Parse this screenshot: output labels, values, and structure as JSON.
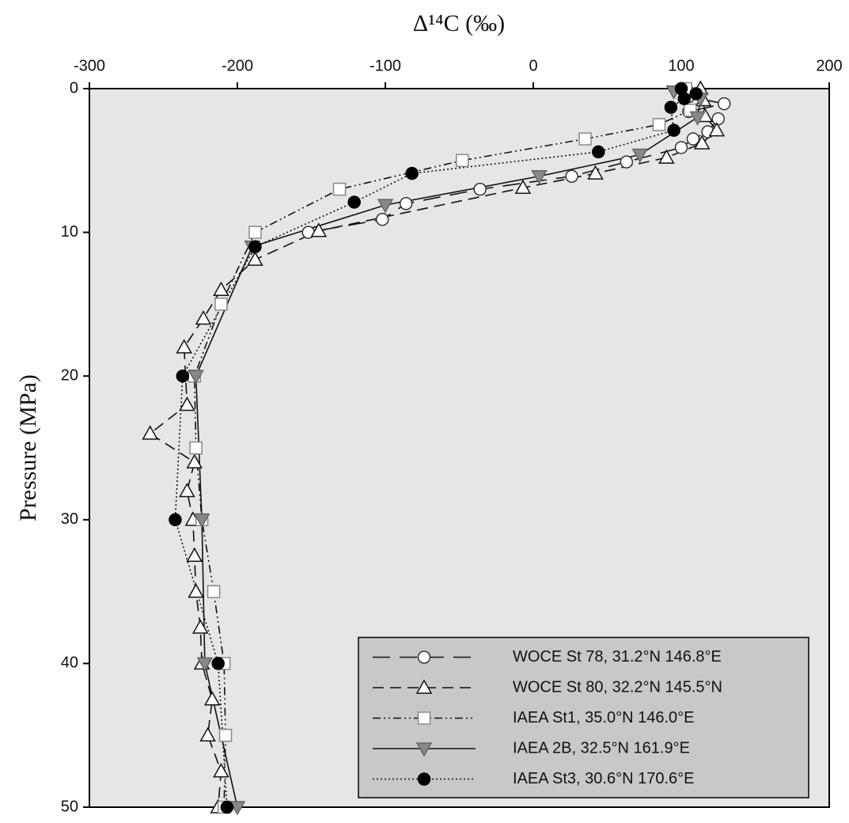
{
  "chart_data": {
    "type": "line",
    "xlabel": "Δ¹⁴C (‰)",
    "ylabel": "Pressure (MPa)",
    "xlim": [
      -300,
      200
    ],
    "xticks": [
      -300,
      -200,
      -100,
      0,
      100,
      200
    ],
    "ylim": [
      0,
      50
    ],
    "yticks": [
      0,
      10,
      20,
      30,
      40,
      50
    ],
    "invert_y": true,
    "background": "#e6e6e6",
    "legend_background": "#c8c8c8",
    "legend": "lower right",
    "series": [
      {
        "name": "WOCE St 78, 31.2°N 146.8°E",
        "color": "#111111",
        "dash": "22,12",
        "marker": "circle",
        "marker_fill": "#ffffff",
        "marker_stroke": "#333333",
        "x": [
          104,
          105,
          129,
          105,
          125,
          118,
          108,
          100,
          63,
          26,
          -36,
          -86,
          -102,
          -152
        ],
        "y": [
          0.1,
          0.55,
          1.05,
          1.6,
          2.1,
          3.0,
          3.5,
          4.1,
          5.1,
          6.1,
          7.0,
          8.0,
          9.1,
          10.0
        ]
      },
      {
        "name": "WOCE St 80, 32.2°N 145.5°N",
        "color": "#111111",
        "dash": "14,8",
        "marker": "triangle-up",
        "marker_fill": "#ffffff",
        "marker_stroke": "#111111",
        "x": [
          113,
          115,
          116,
          124,
          114,
          90,
          42,
          -7,
          -145,
          -188,
          -211,
          -223,
          -236,
          -234,
          -259,
          -229,
          -234,
          -230,
          -229,
          -228,
          -225,
          -224,
          -217,
          -220,
          -211,
          -213
        ],
        "y": [
          0,
          0.8,
          1.9,
          2.9,
          3.8,
          4.8,
          5.9,
          6.9,
          9.9,
          11.9,
          14,
          16,
          18,
          22,
          24,
          26,
          28,
          30,
          32.5,
          35,
          37.5,
          40,
          42.5,
          45,
          47.5,
          50
        ]
      },
      {
        "name": "IAEA St1, 35.0°N 146.0°E",
        "color": "#111111",
        "dash": "10,4,2,4,2,4",
        "marker": "square",
        "marker_fill": "#ffffff",
        "marker_stroke": "#888888",
        "x": [
          103,
          106,
          85,
          35,
          -48,
          -131,
          -188,
          -211,
          -229,
          -228,
          -224,
          -216,
          -209,
          -208,
          -209
        ],
        "y": [
          0,
          1.5,
          2.5,
          3.5,
          5,
          7,
          10,
          15,
          20,
          25,
          30,
          35,
          40,
          45,
          50
        ]
      },
      {
        "name": "IAEA 2B, 32.5°N 161.9°E",
        "color": "#111111",
        "dash": "none",
        "marker": "triangle-down",
        "marker_fill": "#888888",
        "marker_stroke": "#666666",
        "x": [
          95,
          113,
          111,
          72,
          4,
          -100,
          -190,
          -228,
          -224,
          -222,
          -200
        ],
        "y": [
          0.2,
          0.7,
          2,
          4.6,
          6.1,
          8.1,
          11,
          20,
          30,
          40,
          50
        ]
      },
      {
        "name": "IAEA St3, 30.6°N 170.6°E",
        "color": "#111111",
        "dash": "2,3",
        "marker": "circle",
        "marker_fill": "#000000",
        "marker_stroke": "#000000",
        "x": [
          100,
          110,
          102,
          93,
          95,
          44,
          -82,
          -121,
          -188,
          -237,
          -242,
          -213,
          -207
        ],
        "y": [
          0,
          0.35,
          0.7,
          1.3,
          2.9,
          4.4,
          5.9,
          7.9,
          11,
          20,
          30,
          40,
          50
        ]
      }
    ]
  }
}
